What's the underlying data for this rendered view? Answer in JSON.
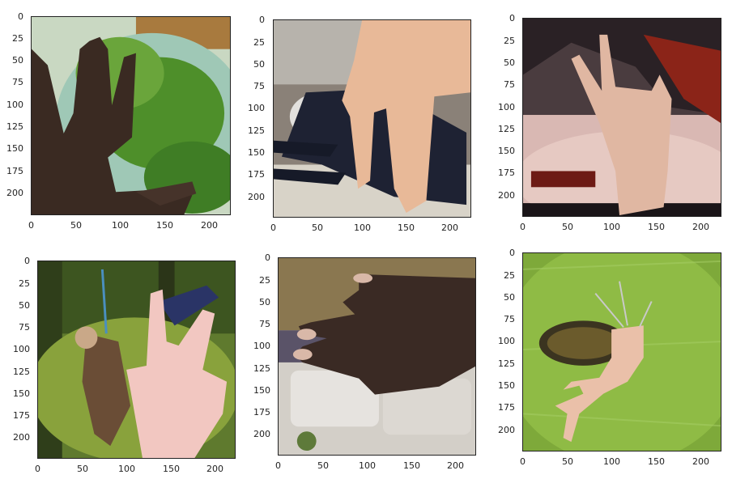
{
  "figure": {
    "panels": [
      {
        "scene": "dark hand with three fingers raised over leafy salad greens",
        "ticks_y": [
          "0",
          "25",
          "50",
          "75",
          "100",
          "125",
          "150",
          "175",
          "200"
        ],
        "ticks_x": [
          "0",
          "50",
          "100",
          "150",
          "200"
        ]
      },
      {
        "scene": "light hand with two fingers pointing down over a donkey lying on snowy ground",
        "ticks_y": [
          "0",
          "25",
          "50",
          "75",
          "100",
          "125",
          "150",
          "175",
          "200"
        ],
        "ticks_x": [
          "0",
          "50",
          "100",
          "150",
          "200"
        ]
      },
      {
        "scene": "hand making a V sign over a dark game poster",
        "ticks_y": [
          "0",
          "25",
          "50",
          "75",
          "100",
          "125",
          "150",
          "175",
          "200"
        ],
        "ticks_x": [
          "0",
          "50",
          "100",
          "150",
          "200"
        ]
      },
      {
        "scene": "hand with painted nails over a person on a swing in woods",
        "ticks_y": [
          "0",
          "25",
          "50",
          "75",
          "100",
          "125",
          "150",
          "175",
          "200"
        ],
        "ticks_x": [
          "0",
          "50",
          "100",
          "150",
          "200"
        ]
      },
      {
        "scene": "dark hand with fingers extended sideways over a living room couch",
        "ticks_y": [
          "0",
          "25",
          "50",
          "75",
          "100",
          "125",
          "150",
          "175",
          "200"
        ],
        "ticks_x": [
          "0",
          "50",
          "100",
          "150",
          "200"
        ]
      },
      {
        "scene": "hand pointing downward over a green leaf with an insect",
        "ticks_y": [
          "0",
          "25",
          "50",
          "75",
          "100",
          "125",
          "150",
          "175",
          "200"
        ],
        "ticks_x": [
          "0",
          "50",
          "100",
          "150",
          "200"
        ]
      }
    ]
  }
}
